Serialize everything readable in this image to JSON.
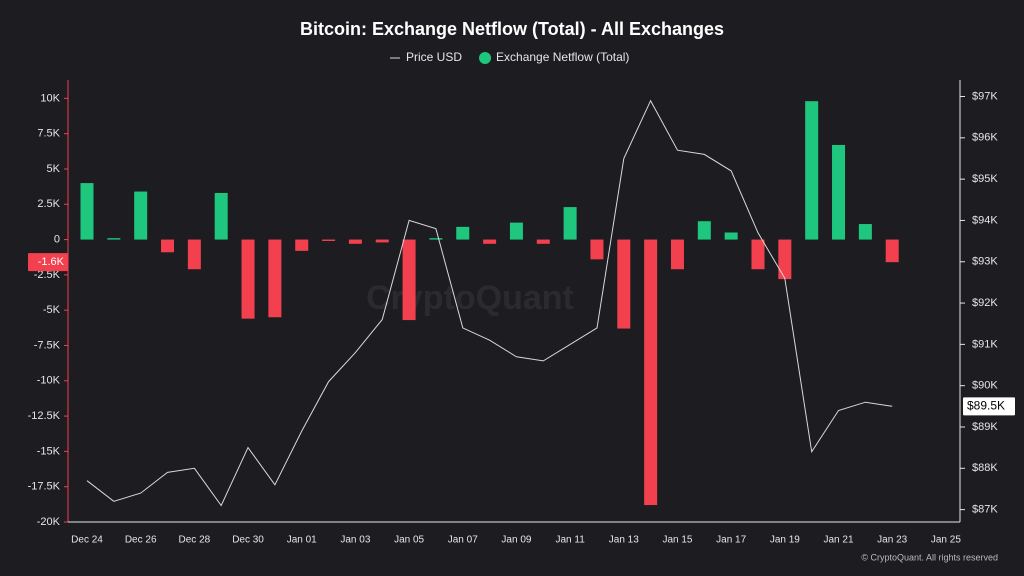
{
  "chart_data": {
    "type": "bar",
    "title": "Bitcoin: Exchange Netflow (Total) - All Exchanges",
    "watermark": "CryptoQuant",
    "footer": "© CryptoQuant. All rights reserved",
    "categories": [
      "Dec 24",
      null,
      "Dec 26",
      null,
      "Dec 28",
      null,
      "Dec 30",
      null,
      "Jan 01",
      null,
      "Jan 03",
      null,
      "Jan 05",
      null,
      "Jan 07",
      null,
      "Jan 09",
      null,
      "Jan 11",
      null,
      "Jan 13",
      null,
      "Jan 15",
      null,
      "Jan 17",
      null,
      "Jan 19",
      null,
      "Jan 21",
      null,
      "Jan 23",
      null,
      "Jan 25"
    ],
    "series": [
      {
        "name": "Price USD",
        "type": "line",
        "axis": "y2",
        "color": "#d9d9d9",
        "values": [
          87.7,
          87.2,
          87.4,
          87.9,
          88.0,
          87.1,
          88.5,
          87.6,
          88.9,
          90.1,
          90.8,
          91.6,
          94.0,
          93.8,
          91.4,
          91.1,
          90.7,
          90.6,
          91.0,
          91.4,
          95.5,
          96.9,
          95.7,
          95.6,
          95.2,
          93.7,
          92.6,
          88.4,
          89.4,
          89.6,
          89.5,
          null,
          null
        ],
        "value_labels": [
          null,
          null,
          null,
          null,
          null,
          null,
          null,
          null,
          null,
          null,
          null,
          null,
          null,
          null,
          null,
          null,
          null,
          null,
          null,
          null,
          null,
          null,
          null,
          null,
          null,
          null,
          null,
          null,
          null,
          null,
          "$89.5K",
          null,
          null
        ]
      },
      {
        "name": "Exchange Netflow (Total)",
        "type": "bar",
        "color": "#1fc77e",
        "negative_color": "#f2404f",
        "values": [
          4.0,
          0.1,
          3.4,
          -0.9,
          -2.1,
          3.3,
          -5.6,
          -5.5,
          -0.8,
          -0.1,
          -0.3,
          -0.2,
          -5.7,
          0.1,
          0.9,
          -0.3,
          1.2,
          -0.3,
          2.3,
          -1.4,
          -6.3,
          -18.8,
          -2.1,
          1.3,
          0.5,
          -2.1,
          -2.8,
          9.8,
          6.7,
          1.1,
          -1.6,
          null,
          null
        ],
        "value_labels": [
          null,
          null,
          null,
          null,
          null,
          null,
          null,
          null,
          null,
          null,
          null,
          null,
          null,
          null,
          null,
          null,
          null,
          null,
          null,
          null,
          null,
          null,
          null,
          null,
          null,
          null,
          null,
          null,
          null,
          null,
          "-1.6K",
          null,
          null
        ]
      }
    ],
    "ylim": [
      -20,
      11.3
    ],
    "yticks": [
      {
        "value": 10,
        "label": "10K"
      },
      {
        "value": 7.5,
        "label": "7.5K"
      },
      {
        "value": 5,
        "label": "5K"
      },
      {
        "value": 2.5,
        "label": "2.5K"
      },
      0,
      {
        "value": -2.5,
        "label": "-2.5K"
      },
      {
        "value": -5,
        "label": "-5K"
      },
      {
        "value": -7.5,
        "label": "-7.5K"
      },
      {
        "value": -10,
        "label": "-10K"
      },
      {
        "value": -12.5,
        "label": "-12.5K"
      },
      {
        "value": -15,
        "label": "-15K"
      },
      {
        "value": -17.5,
        "label": "-17.5K"
      },
      {
        "value": -20,
        "label": "-20K"
      }
    ],
    "y2lim": [
      86.7,
      97.4
    ],
    "y2ticks": [
      {
        "value": 97,
        "label": "$97K"
      },
      {
        "value": 96,
        "label": "$96K"
      },
      {
        "value": 95,
        "label": "$95K"
      },
      {
        "value": 94,
        "label": "$94K"
      },
      {
        "value": 93,
        "label": "$93K"
      },
      {
        "value": 92,
        "label": "$92K"
      },
      {
        "value": 91,
        "label": "$91K"
      },
      {
        "value": 90,
        "label": "$90K"
      },
      {
        "value": 89,
        "label": "$89K"
      },
      {
        "value": 88,
        "label": "$88K"
      },
      {
        "value": 87,
        "label": "$87K"
      }
    ],
    "grid": false,
    "legend": "top"
  }
}
